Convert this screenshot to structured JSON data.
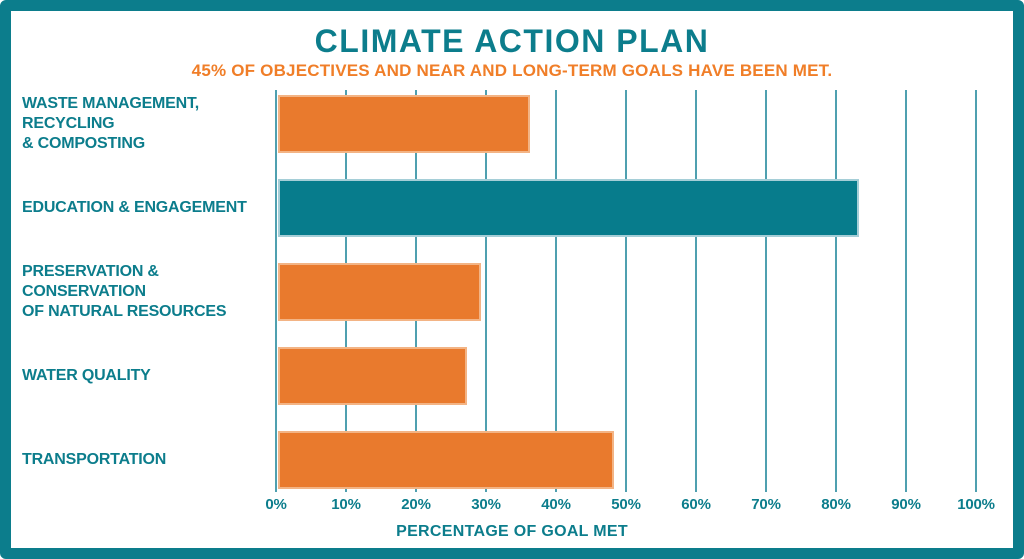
{
  "header": {
    "title": "CLIMATE ACTION PLAN",
    "subtitle": "45% OF OBJECTIVES AND NEAR AND LONG-TERM GOALS HAVE BEEN MET."
  },
  "colors": {
    "frame": "#0C7D8C",
    "title_teal": "#0C7D8C",
    "subtitle_orange": "#F07E28",
    "grid_line": "#4FA0B0",
    "bar_orange": "#E97A2D",
    "bar_teal": "#077C8C",
    "bar_border_orange": "#F3B485",
    "bar_border_teal": "#A5CED7"
  },
  "chart_data": {
    "type": "bar",
    "orientation": "horizontal",
    "title": "CLIMATE ACTION PLAN",
    "subtitle": "45% OF OBJECTIVES AND NEAR AND LONG-TERM GOALS HAVE BEEN MET.",
    "categories": [
      [
        "WASTE MANAGEMENT, RECYCLING",
        "& COMPOSTING"
      ],
      [
        "EDUCATION & ENGAGEMENT"
      ],
      [
        "PRESERVATION & CONSERVATION",
        "OF NATURAL RESOURCES"
      ],
      [
        "WATER QUALITY"
      ],
      [
        "TRANSPORTATION"
      ]
    ],
    "values": [
      36,
      83,
      29,
      27,
      48
    ],
    "bar_colors": [
      "orange",
      "teal",
      "orange",
      "orange",
      "orange"
    ],
    "xlabel": "PERCENTAGE OF GOAL MET",
    "x_ticks": [
      "0%",
      "10%",
      "20%",
      "30%",
      "40%",
      "50%",
      "60%",
      "70%",
      "80%",
      "90%",
      "100%"
    ],
    "xlim": [
      0,
      100
    ],
    "grid": true,
    "legend": false
  }
}
